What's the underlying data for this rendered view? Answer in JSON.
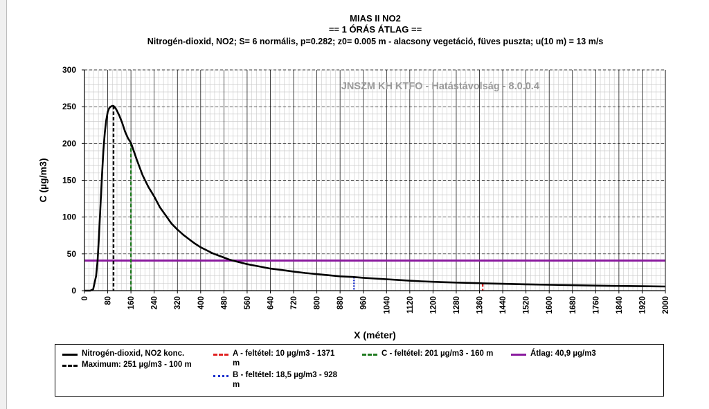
{
  "header": {
    "title": "MIAS II NO2",
    "subtitle": "== 1 ÓRÁS ÁTLAG ==",
    "description": "Nitrogén-dioxid, NO2;  S= 6 normális, p=0.282; z0= 0.005 m - alacsony vegetáció, füves puszta; u(10 m) = 13 m/s"
  },
  "watermark": "JNSZM KH KTFO - Hatástávolság  - 8.0.0.4",
  "chart_data": {
    "type": "line",
    "title": "MIAS II NO2",
    "xlabel": "X (méter)",
    "ylabel": "C (µg/m3)",
    "xlim": [
      0,
      2000
    ],
    "ylim": [
      0,
      300
    ],
    "x_ticks": [
      0,
      80,
      160,
      240,
      320,
      400,
      480,
      560,
      640,
      720,
      800,
      880,
      960,
      1040,
      1120,
      1200,
      1280,
      1360,
      1440,
      1520,
      1600,
      1680,
      1760,
      1840,
      1920,
      2000
    ],
    "y_ticks": [
      0,
      50,
      100,
      150,
      200,
      250,
      300
    ],
    "grid": true,
    "series": [
      {
        "name": "Nitrogén-dioxid, NO2 konc.",
        "color": "#000000",
        "x": [
          0,
          20,
          30,
          40,
          45,
          50,
          55,
          60,
          65,
          70,
          75,
          80,
          85,
          90,
          95,
          100,
          105,
          110,
          120,
          130,
          140,
          150,
          160,
          180,
          200,
          220,
          240,
          260,
          280,
          300,
          320,
          340,
          360,
          380,
          400,
          420,
          440,
          460,
          480,
          500,
          520,
          540,
          560,
          600,
          640,
          680,
          720,
          760,
          800,
          840,
          880,
          928,
          960,
          1000,
          1040,
          1080,
          1120,
          1160,
          1200,
          1280,
          1360,
          1371,
          1440,
          1520,
          1600,
          1680,
          1760,
          1840,
          1920,
          2000
        ],
        "y": [
          0,
          0,
          2,
          20,
          40,
          75,
          115,
          155,
          190,
          215,
          232,
          243,
          248,
          250,
          251,
          251,
          249,
          246,
          238,
          228,
          216,
          207,
          201,
          178,
          157,
          141,
          128,
          113,
          102,
          91,
          83,
          76,
          70,
          64,
          59,
          55,
          51,
          48,
          45,
          42,
          40,
          38,
          36,
          33,
          30,
          28,
          26,
          24,
          22.5,
          21,
          19.5,
          18.5,
          17.5,
          16.5,
          15.5,
          14.5,
          13.5,
          12.7,
          12,
          11,
          10.2,
          10,
          9.3,
          8.6,
          8,
          7.4,
          6.9,
          6.4,
          6,
          5.6
        ]
      }
    ],
    "markers": [
      {
        "name": "Maximum",
        "x": 100,
        "y": 251,
        "color": "#000000",
        "style": "dashed"
      },
      {
        "name": "A - feltétel",
        "x": 1371,
        "y": 10,
        "color": "#e02020",
        "style": "dashed"
      },
      {
        "name": "B - feltétel",
        "x": 928,
        "y": 18.5,
        "color": "#1a2fcc",
        "style": "dotted"
      },
      {
        "name": "C - feltétel",
        "x": 160,
        "y": 201,
        "color": "#1f7a1f",
        "style": "dashed"
      }
    ],
    "average": {
      "name": "Átlag",
      "y": 40.9,
      "color": "#8a1a9e"
    }
  },
  "legend": {
    "items": [
      {
        "label": "Nitrogén-dioxid, NO2 konc.",
        "color": "#000000",
        "style": "solid"
      },
      {
        "label": "Maximum: 251 µg/m3 - 100 m",
        "color": "#000000",
        "style": "dashed"
      },
      {
        "label": "A - feltétel: 10 µg/m3 - 1371 m",
        "color": "#e02020",
        "style": "dashed"
      },
      {
        "label": "B - feltétel: 18,5 µg/m3 - 928 m",
        "color": "#1a2fcc",
        "style": "dotted"
      },
      {
        "label": "C - feltétel: 201 µg/m3 - 160 m",
        "color": "#1f7a1f",
        "style": "dashed"
      },
      {
        "label": "Átlag: 40,9 µg/m3",
        "color": "#8a1a9e",
        "style": "solid"
      }
    ]
  }
}
